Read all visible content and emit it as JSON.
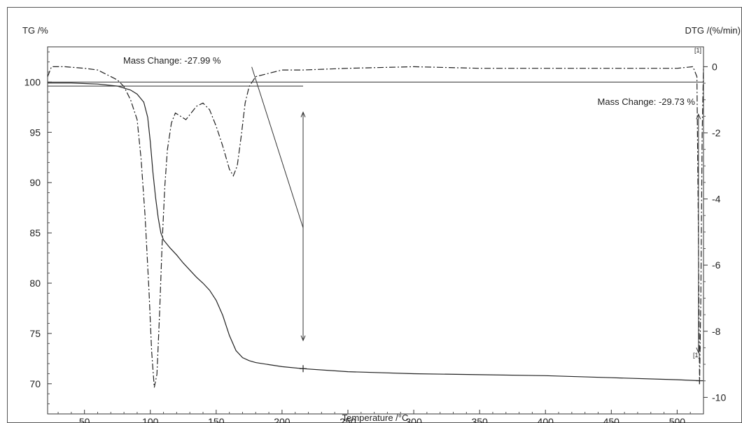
{
  "chart_data": {
    "type": "line",
    "x_axis": {
      "label": "Temperature /°C",
      "range": [
        22,
        520
      ],
      "ticks": [
        50,
        100,
        150,
        200,
        250,
        300,
        350,
        400,
        450,
        500
      ]
    },
    "y_left_axis": {
      "label": "TG /%",
      "range": [
        67,
        103.5
      ],
      "ticks": [
        70,
        75,
        80,
        85,
        90,
        95,
        100
      ]
    },
    "y_right_axis": {
      "label": "DTG /(%/min)",
      "range": [
        -10.5,
        0.6
      ],
      "ticks": [
        0,
        -2,
        -4,
        -6,
        -8,
        -10
      ]
    },
    "series": [
      {
        "axis": "left",
        "style": "solid",
        "points": [
          [
            22,
            99.9
          ],
          [
            40,
            99.9
          ],
          [
            60,
            99.8
          ],
          [
            75,
            99.6
          ],
          [
            85,
            99.2
          ],
          [
            90,
            98.8
          ],
          [
            95,
            98.0
          ],
          [
            98,
            96.5
          ],
          [
            100,
            94.0
          ],
          [
            102,
            91.0
          ],
          [
            104,
            88.5
          ],
          [
            106,
            86.5
          ],
          [
            108,
            85.0
          ],
          [
            110,
            84.3
          ],
          [
            115,
            83.5
          ],
          [
            120,
            82.8
          ],
          [
            125,
            82.0
          ],
          [
            130,
            81.3
          ],
          [
            135,
            80.6
          ],
          [
            140,
            80.0
          ],
          [
            145,
            79.3
          ],
          [
            150,
            78.3
          ],
          [
            155,
            76.8
          ],
          [
            160,
            74.8
          ],
          [
            165,
            73.3
          ],
          [
            170,
            72.6
          ],
          [
            175,
            72.3
          ],
          [
            180,
            72.1
          ],
          [
            190,
            71.9
          ],
          [
            200,
            71.7
          ],
          [
            216,
            71.5
          ],
          [
            250,
            71.2
          ],
          [
            300,
            71.0
          ],
          [
            350,
            70.9
          ],
          [
            400,
            70.8
          ],
          [
            450,
            70.6
          ],
          [
            500,
            70.4
          ],
          [
            517,
            70.3
          ]
        ]
      },
      {
        "axis": "right",
        "style": "dash-dot",
        "points": [
          [
            22,
            -0.3
          ],
          [
            25,
            0.0
          ],
          [
            35,
            0.0
          ],
          [
            50,
            -0.05
          ],
          [
            60,
            -0.1
          ],
          [
            65,
            -0.2
          ],
          [
            75,
            -0.4
          ],
          [
            80,
            -0.6
          ],
          [
            85,
            -1.0
          ],
          [
            90,
            -1.6
          ],
          [
            93,
            -2.8
          ],
          [
            96,
            -4.5
          ],
          [
            99,
            -6.8
          ],
          [
            101,
            -8.6
          ],
          [
            103,
            -9.7
          ],
          [
            105,
            -9.3
          ],
          [
            107,
            -7.5
          ],
          [
            109,
            -5.3
          ],
          [
            111,
            -3.6
          ],
          [
            113,
            -2.5
          ],
          [
            116,
            -1.7
          ],
          [
            119,
            -1.4
          ],
          [
            123,
            -1.5
          ],
          [
            127,
            -1.6
          ],
          [
            131,
            -1.4
          ],
          [
            135,
            -1.2
          ],
          [
            140,
            -1.1
          ],
          [
            145,
            -1.3
          ],
          [
            150,
            -1.8
          ],
          [
            155,
            -2.4
          ],
          [
            160,
            -3.1
          ],
          [
            163,
            -3.3
          ],
          [
            166,
            -3.0
          ],
          [
            169,
            -2.1
          ],
          [
            172,
            -1.1
          ],
          [
            175,
            -0.6
          ],
          [
            180,
            -0.3
          ],
          [
            190,
            -0.2
          ],
          [
            200,
            -0.1
          ],
          [
            216,
            -0.1
          ],
          [
            250,
            -0.05
          ],
          [
            300,
            0.0
          ],
          [
            350,
            -0.05
          ],
          [
            400,
            -0.05
          ],
          [
            450,
            -0.05
          ],
          [
            500,
            -0.05
          ],
          [
            512,
            0.0
          ],
          [
            515,
            -0.3
          ],
          [
            516,
            -4.5
          ],
          [
            517,
            -9.6
          ],
          [
            518,
            -7.0
          ],
          [
            519,
            -2.0
          ],
          [
            520,
            0.0
          ]
        ]
      }
    ],
    "annotations": [
      {
        "text": "Mass Change: -27.99 %",
        "from": [
          22,
          99.6
        ],
        "to": [
          216,
          71.5
        ]
      },
      {
        "text": "Mass Change: -29.73 %",
        "from": [
          517,
          100.0
        ],
        "to": [
          517,
          70.3
        ]
      }
    ],
    "markers": [
      {
        "text": "[1]",
        "near": "top-right"
      },
      {
        "text": "[1]",
        "near": "bottom-right"
      }
    ]
  }
}
